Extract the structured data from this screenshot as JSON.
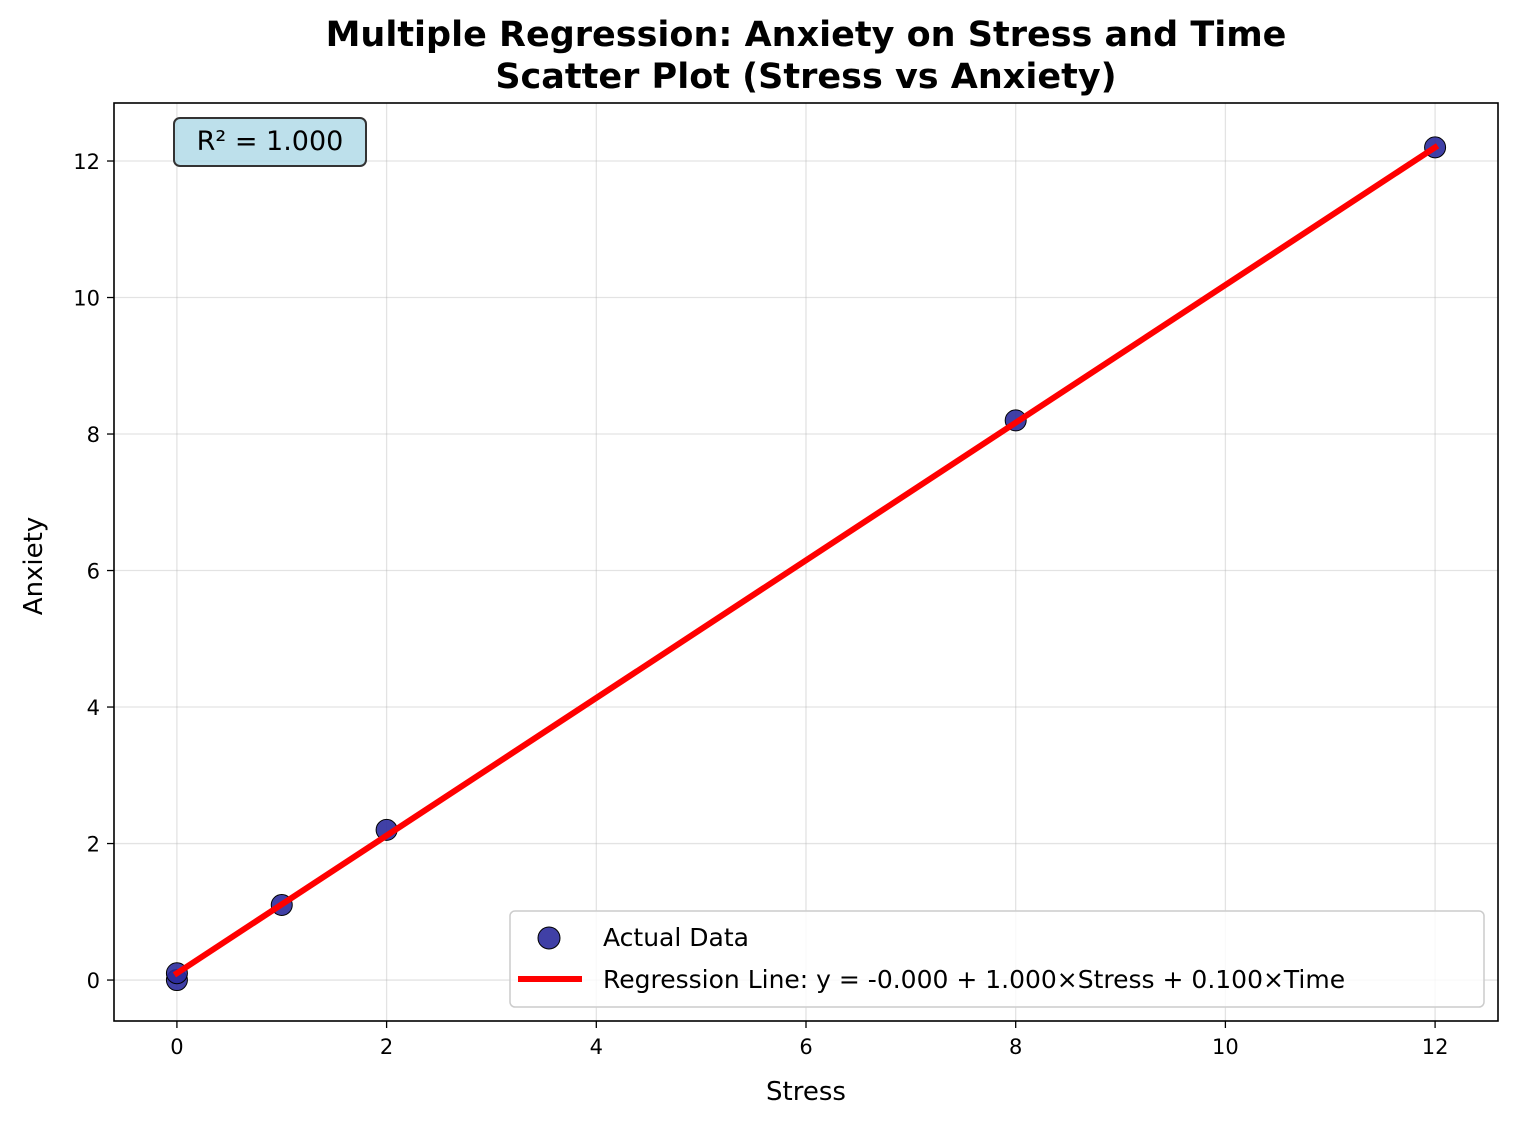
{
  "chart_data": {
    "type": "scatter",
    "title": "Multiple Regression: Anxiety on Stress and Time",
    "subtitle": "Scatter Plot (Stress vs Anxiety)",
    "xlabel": "Stress",
    "ylabel": "Anxiety",
    "xlim": [
      -0.6,
      12.6
    ],
    "ylim": [
      -0.6,
      12.85
    ],
    "xticks": [
      0,
      2,
      4,
      6,
      8,
      10,
      12
    ],
    "yticks": [
      0,
      2,
      4,
      6,
      8,
      10,
      12
    ],
    "grid": true,
    "legend_position": "lower-right",
    "series": [
      {
        "name": "Actual Data",
        "kind": "scatter",
        "color": "#2b2b9c",
        "edge_color": "#000000",
        "points": [
          {
            "x": 0,
            "y": 0.0
          },
          {
            "x": 0,
            "y": 0.1
          },
          {
            "x": 1,
            "y": 1.1
          },
          {
            "x": 2,
            "y": 2.2
          },
          {
            "x": 8,
            "y": 8.2
          },
          {
            "x": 12,
            "y": 12.2
          }
        ]
      },
      {
        "name": "Regression Line: y = -0.000 + 1.000×Stress + 0.100×Time",
        "kind": "line",
        "color": "#ff0000",
        "points": [
          {
            "x": 0,
            "y": 0.1
          },
          {
            "x": 12,
            "y": 12.2
          }
        ]
      }
    ],
    "annotation": {
      "text": "R² = 1.000",
      "position": "top-left",
      "background": "#add8e6"
    }
  }
}
